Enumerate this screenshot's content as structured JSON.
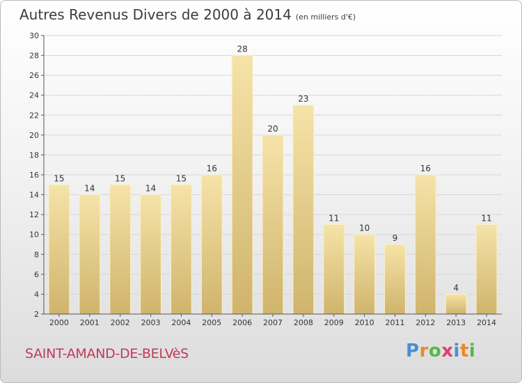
{
  "title": {
    "main": "Autres Revenus Divers de 2000 à 2014",
    "sub": "(en milliers d'€)"
  },
  "commune": "SAINT-AMAND-DE-BELVèS",
  "logo": {
    "letters": [
      "P",
      "r",
      "o",
      "x",
      "i",
      "t",
      "i"
    ],
    "colors": [
      "#4a8fd4",
      "#e8892a",
      "#57b847",
      "#e23a7a",
      "#4a8fd4",
      "#e8892a",
      "#57b847"
    ]
  },
  "colors": {
    "bar_light": "#f6e3a8",
    "bar_dark": "#cfb46c",
    "grid": "#d6d6d6",
    "axis": "#555555"
  },
  "chart_data": {
    "type": "bar",
    "categories": [
      "2000",
      "2001",
      "2002",
      "2003",
      "2004",
      "2005",
      "2006",
      "2007",
      "2008",
      "2009",
      "2010",
      "2011",
      "2012",
      "2013",
      "2014"
    ],
    "values": [
      15,
      14,
      15,
      14,
      15,
      16,
      28,
      20,
      23,
      11,
      10,
      9,
      16,
      4,
      11
    ],
    "ylim": [
      2,
      30
    ],
    "yticks": [
      2,
      4,
      6,
      8,
      10,
      12,
      14,
      16,
      18,
      20,
      22,
      24,
      26,
      28,
      30
    ],
    "grid": true
  }
}
